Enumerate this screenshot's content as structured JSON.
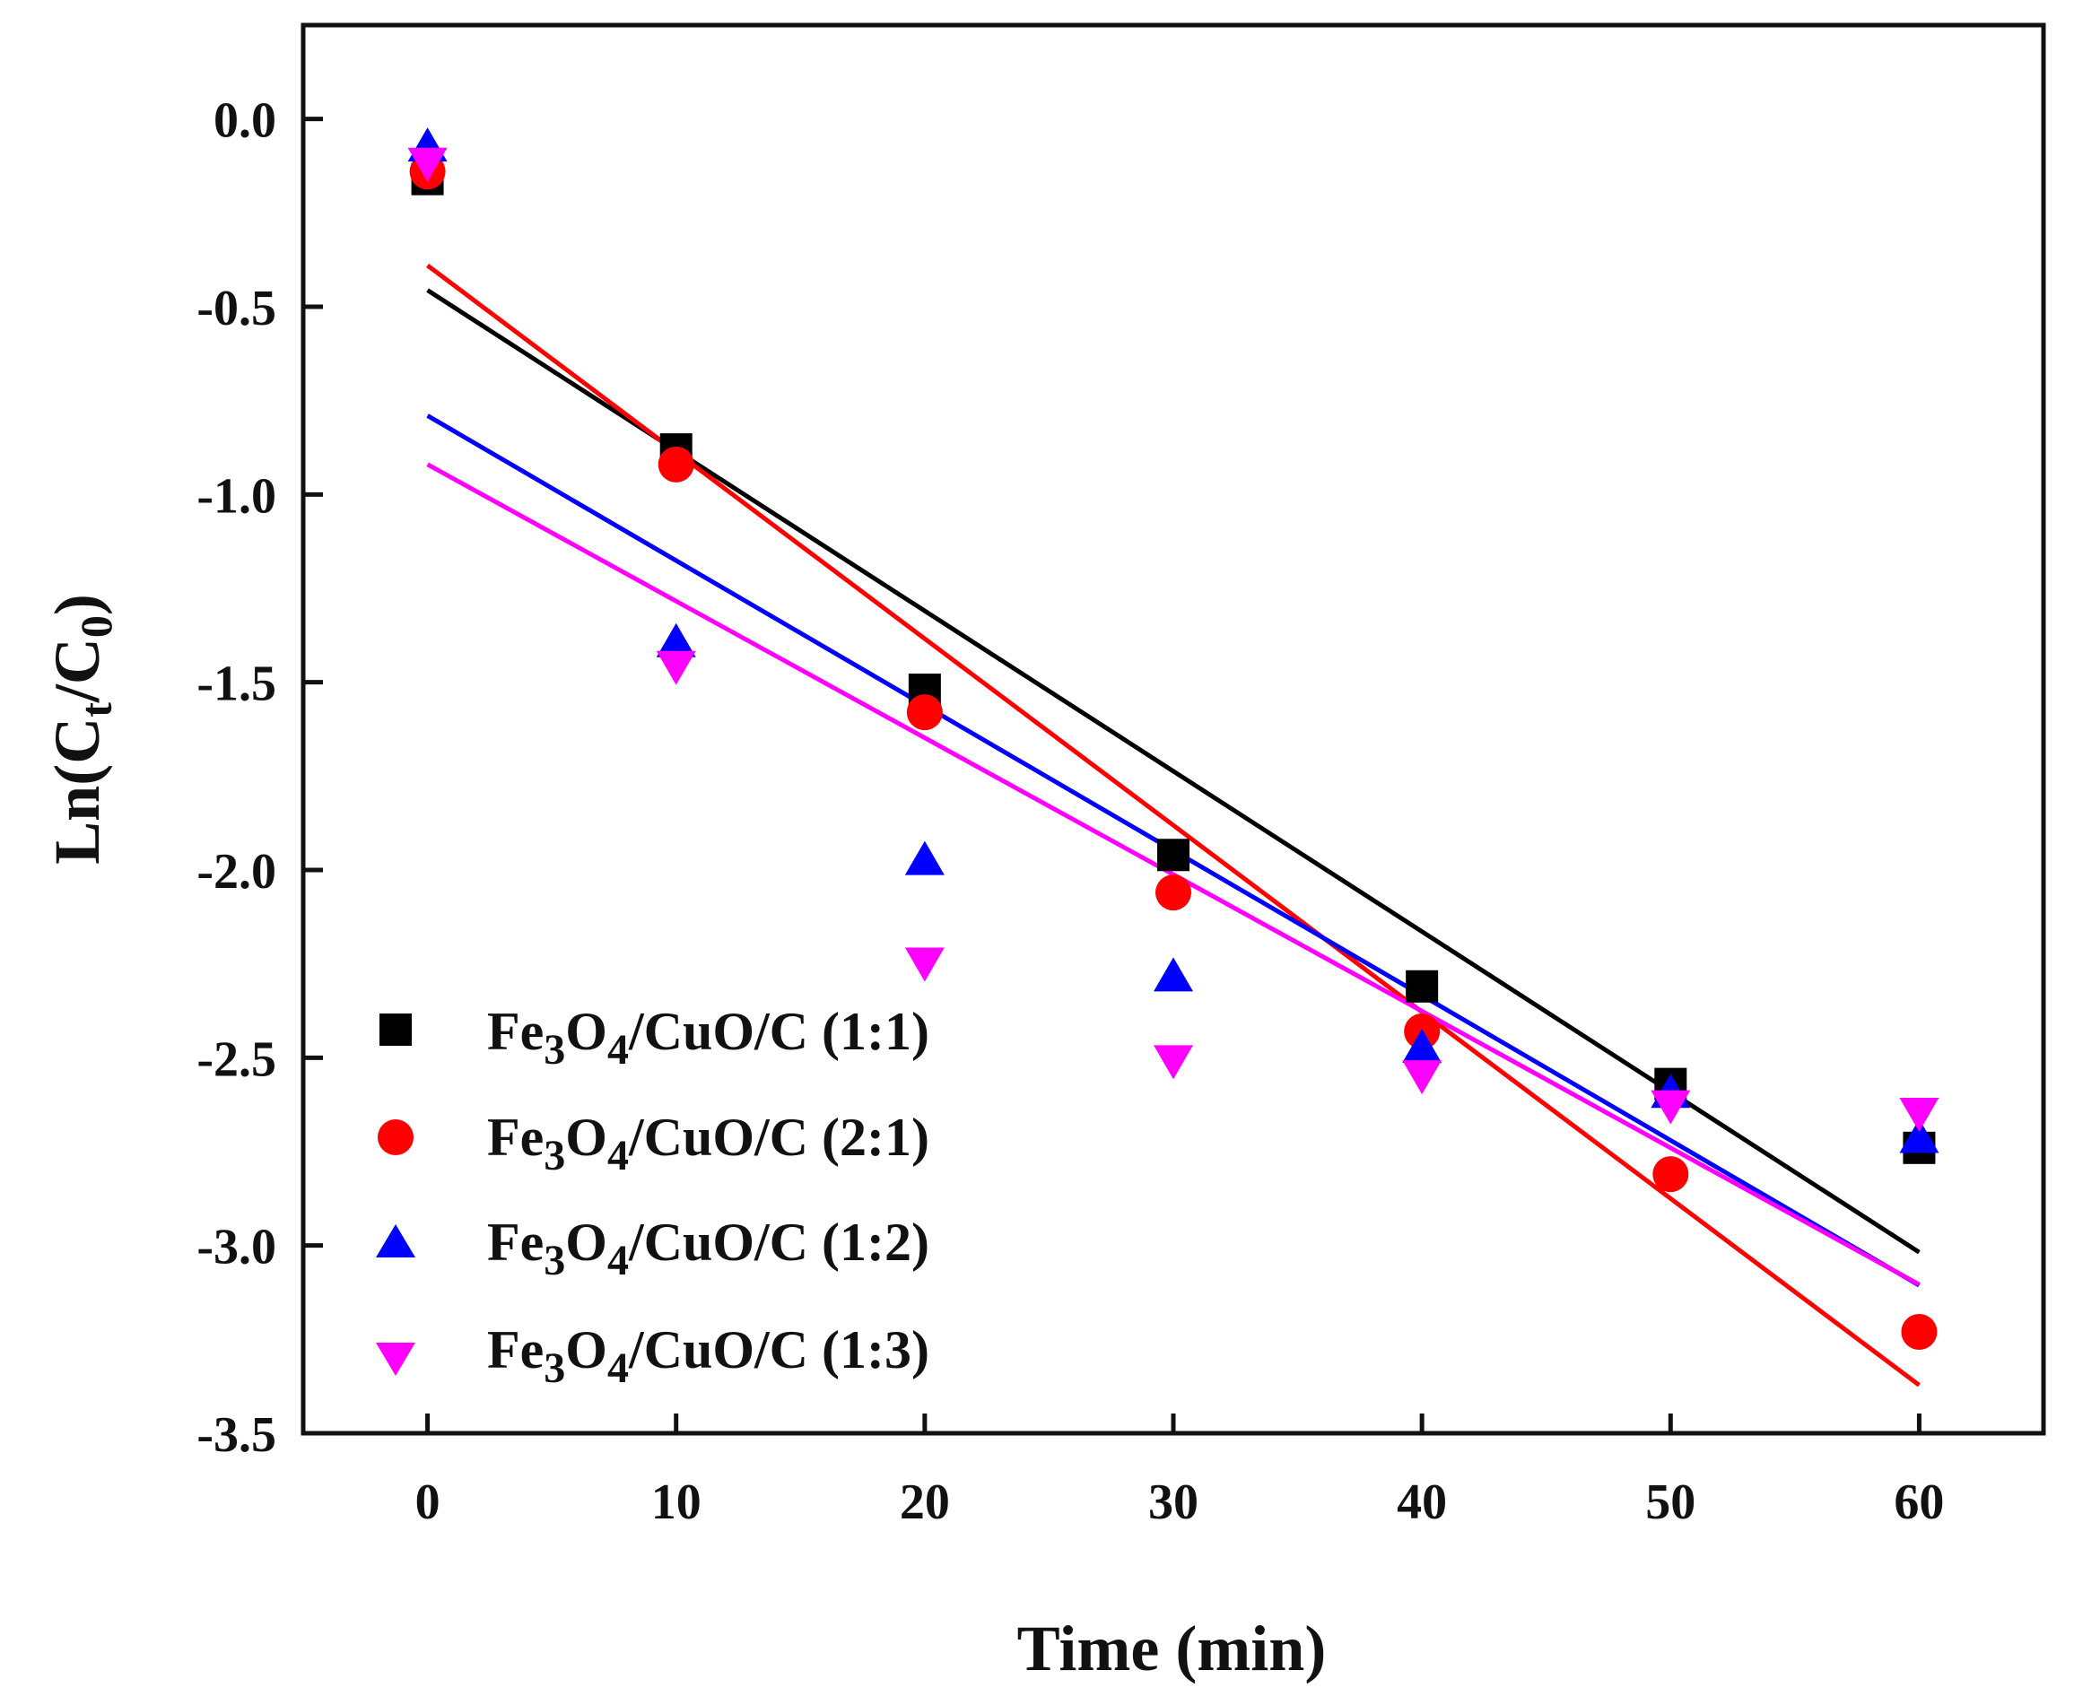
{
  "chart_data": {
    "type": "scatter",
    "title": "",
    "xlabel": "Time (min)",
    "ylabel": {
      "main": "Ln(C",
      "sub1": "t",
      "mid": "/C",
      "sub2": "0",
      "end": ")"
    },
    "xlim": [
      -5,
      65
    ],
    "ylim": [
      -3.5,
      0.25
    ],
    "x_ticks": [
      "0",
      "10",
      "20",
      "30",
      "40",
      "50",
      "60"
    ],
    "y_ticks": [
      "0.0",
      "-0.5",
      "-1.0",
      "-1.5",
      "-2.0",
      "-2.5",
      "-3.0",
      "-3.5"
    ],
    "legend_position": "bottom-left",
    "series": [
      {
        "name": "Fe3O4/CuO/C (1:1)",
        "label": {
          "a": "Fe",
          "s1": "3",
          "b": "O",
          "s2": "4",
          "c": "/CuO/C (1:1)"
        },
        "color": "#000000",
        "marker": "square",
        "x": [
          0,
          10,
          20,
          30,
          40,
          50,
          60
        ],
        "y": [
          -0.16,
          -0.88,
          -1.52,
          -1.96,
          -2.31,
          -2.57,
          -2.74
        ],
        "fit": {
          "slope": -0.0427,
          "intercept": -0.456
        }
      },
      {
        "name": "Fe3O4/CuO/C (2:1)",
        "label": {
          "a": "Fe",
          "s1": "3",
          "b": "O",
          "s2": "4",
          "c": "/CuO/C (2:1)"
        },
        "color": "#ff0000",
        "marker": "circle",
        "x": [
          0,
          10,
          20,
          30,
          40,
          50,
          60
        ],
        "y": [
          -0.14,
          -0.92,
          -1.58,
          -2.06,
          -2.43,
          -2.81,
          -3.23
        ],
        "fit": {
          "slope": -0.0497,
          "intercept": -0.39
        }
      },
      {
        "name": "Fe3O4/CuO/C (1:2)",
        "label": {
          "a": "Fe",
          "s1": "3",
          "b": "O",
          "s2": "4",
          "c": "/CuO/C (1:2)"
        },
        "color": "#0000ff",
        "marker": "triangle-up",
        "x": [
          0,
          10,
          20,
          30,
          40,
          50,
          60
        ],
        "y": [
          -0.08,
          -1.4,
          -1.98,
          -2.29,
          -2.48,
          -2.6,
          -2.72
        ],
        "fit": {
          "slope": -0.0386,
          "intercept": -0.79
        }
      },
      {
        "name": "Fe3O4/CuO/C (1:3)",
        "label": {
          "a": "Fe",
          "s1": "3",
          "b": "O",
          "s2": "4",
          "c": "/CuO/C (1:3)"
        },
        "color": "#ff00ff",
        "marker": "triangle-down",
        "x": [
          0,
          10,
          20,
          30,
          40,
          50,
          60
        ],
        "y": [
          -0.11,
          -1.45,
          -2.24,
          -2.5,
          -2.54,
          -2.62,
          -2.64
        ],
        "fit": {
          "slope": -0.0364,
          "intercept": -0.92
        }
      }
    ]
  }
}
